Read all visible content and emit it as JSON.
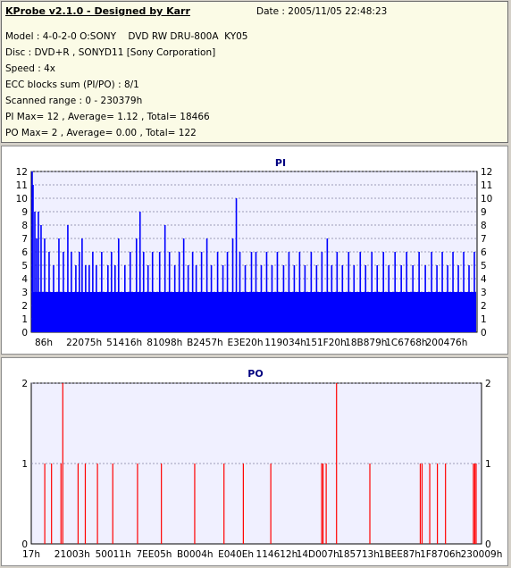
{
  "info": {
    "title": "KProbe v2.1.0 - Designed by Karr",
    "date": "Date : 2005/11/05 22:48:23",
    "lines": [
      "Model : 4-0-2-0 O:SONY    DVD RW DRU-800A  KY05",
      "Disc : DVD+R , SONYD11 [Sony Corporation]",
      "Speed : 4x",
      "ECC blocks sum (PI/PO) : 8/1",
      "Scanned range : 0 - 230379h",
      "PI Max= 12 , Average= 1.12 , Total= 18466",
      "PO Max= 2 , Average= 0.00 , Total= 122"
    ]
  },
  "colors": {
    "pi": "#0000ff",
    "po": "#ff0000",
    "plot_bg": "#f0f0ff",
    "grid": "#8080a0"
  },
  "chart_data": [
    {
      "type": "bar",
      "title": "PI",
      "ylim": [
        0,
        12
      ],
      "yticks": [
        0,
        1,
        2,
        3,
        4,
        5,
        6,
        7,
        8,
        9,
        10,
        11,
        12
      ],
      "xticks": [
        "86h",
        "22075h",
        "51416h",
        "81098h",
        "B2457h",
        "E3E20h",
        "119034h",
        "151F20h",
        "18B879h",
        "1C6768h",
        "200476h"
      ],
      "xrange_label": "0 - 230379h",
      "baseline": 3,
      "spikes": [
        {
          "x": 0.002,
          "y": 12
        },
        {
          "x": 0.004,
          "y": 11
        },
        {
          "x": 0.008,
          "y": 9
        },
        {
          "x": 0.012,
          "y": 7
        },
        {
          "x": 0.016,
          "y": 9
        },
        {
          "x": 0.022,
          "y": 8
        },
        {
          "x": 0.03,
          "y": 7
        },
        {
          "x": 0.04,
          "y": 6
        },
        {
          "x": 0.05,
          "y": 5
        },
        {
          "x": 0.062,
          "y": 7
        },
        {
          "x": 0.072,
          "y": 6
        },
        {
          "x": 0.082,
          "y": 8
        },
        {
          "x": 0.09,
          "y": 6
        },
        {
          "x": 0.1,
          "y": 5
        },
        {
          "x": 0.108,
          "y": 6
        },
        {
          "x": 0.114,
          "y": 7
        },
        {
          "x": 0.122,
          "y": 5
        },
        {
          "x": 0.13,
          "y": 5
        },
        {
          "x": 0.138,
          "y": 6
        },
        {
          "x": 0.146,
          "y": 5
        },
        {
          "x": 0.158,
          "y": 6
        },
        {
          "x": 0.172,
          "y": 5
        },
        {
          "x": 0.18,
          "y": 6
        },
        {
          "x": 0.188,
          "y": 5
        },
        {
          "x": 0.196,
          "y": 7
        },
        {
          "x": 0.21,
          "y": 5
        },
        {
          "x": 0.222,
          "y": 6
        },
        {
          "x": 0.236,
          "y": 7
        },
        {
          "x": 0.244,
          "y": 9
        },
        {
          "x": 0.252,
          "y": 6
        },
        {
          "x": 0.262,
          "y": 5
        },
        {
          "x": 0.272,
          "y": 6
        },
        {
          "x": 0.288,
          "y": 6
        },
        {
          "x": 0.3,
          "y": 8
        },
        {
          "x": 0.31,
          "y": 6
        },
        {
          "x": 0.322,
          "y": 5
        },
        {
          "x": 0.332,
          "y": 6
        },
        {
          "x": 0.342,
          "y": 7
        },
        {
          "x": 0.352,
          "y": 5
        },
        {
          "x": 0.362,
          "y": 6
        },
        {
          "x": 0.37,
          "y": 5
        },
        {
          "x": 0.382,
          "y": 6
        },
        {
          "x": 0.394,
          "y": 7
        },
        {
          "x": 0.404,
          "y": 5
        },
        {
          "x": 0.418,
          "y": 6
        },
        {
          "x": 0.43,
          "y": 5
        },
        {
          "x": 0.44,
          "y": 6
        },
        {
          "x": 0.452,
          "y": 7
        },
        {
          "x": 0.46,
          "y": 10
        },
        {
          "x": 0.468,
          "y": 6
        },
        {
          "x": 0.48,
          "y": 5
        },
        {
          "x": 0.494,
          "y": 6
        },
        {
          "x": 0.504,
          "y": 6
        },
        {
          "x": 0.516,
          "y": 5
        },
        {
          "x": 0.528,
          "y": 6
        },
        {
          "x": 0.54,
          "y": 5
        },
        {
          "x": 0.552,
          "y": 6
        },
        {
          "x": 0.566,
          "y": 5
        },
        {
          "x": 0.578,
          "y": 6
        },
        {
          "x": 0.59,
          "y": 5
        },
        {
          "x": 0.602,
          "y": 6
        },
        {
          "x": 0.614,
          "y": 5
        },
        {
          "x": 0.628,
          "y": 6
        },
        {
          "x": 0.64,
          "y": 5
        },
        {
          "x": 0.652,
          "y": 6
        },
        {
          "x": 0.664,
          "y": 7
        },
        {
          "x": 0.674,
          "y": 5
        },
        {
          "x": 0.686,
          "y": 6
        },
        {
          "x": 0.698,
          "y": 5
        },
        {
          "x": 0.712,
          "y": 6
        },
        {
          "x": 0.724,
          "y": 5
        },
        {
          "x": 0.738,
          "y": 6
        },
        {
          "x": 0.75,
          "y": 5
        },
        {
          "x": 0.764,
          "y": 6
        },
        {
          "x": 0.776,
          "y": 5
        },
        {
          "x": 0.79,
          "y": 6
        },
        {
          "x": 0.802,
          "y": 5
        },
        {
          "x": 0.816,
          "y": 6
        },
        {
          "x": 0.83,
          "y": 5
        },
        {
          "x": 0.842,
          "y": 6
        },
        {
          "x": 0.856,
          "y": 5
        },
        {
          "x": 0.87,
          "y": 6
        },
        {
          "x": 0.884,
          "y": 5
        },
        {
          "x": 0.898,
          "y": 6
        },
        {
          "x": 0.91,
          "y": 5
        },
        {
          "x": 0.922,
          "y": 6
        },
        {
          "x": 0.934,
          "y": 5
        },
        {
          "x": 0.946,
          "y": 6
        },
        {
          "x": 0.958,
          "y": 5
        },
        {
          "x": 0.97,
          "y": 6
        },
        {
          "x": 0.982,
          "y": 5
        },
        {
          "x": 0.994,
          "y": 6
        }
      ]
    },
    {
      "type": "bar",
      "title": "PO",
      "ylim": [
        0,
        2
      ],
      "yticks": [
        0,
        1,
        2
      ],
      "xticks": [
        "17h",
        "21003h",
        "50011h",
        "7EE05h",
        "B0004h",
        "E040Eh",
        "114612h",
        "14D007h",
        "185713h",
        "1BEE87h",
        "1F8706h",
        "230009h"
      ],
      "xrange_label": "0 - 230379h",
      "spikes": [
        {
          "x": 0.03,
          "y": 1
        },
        {
          "x": 0.045,
          "y": 1
        },
        {
          "x": 0.066,
          "y": 1
        },
        {
          "x": 0.07,
          "y": 2
        },
        {
          "x": 0.104,
          "y": 1
        },
        {
          "x": 0.12,
          "y": 1
        },
        {
          "x": 0.147,
          "y": 1
        },
        {
          "x": 0.181,
          "y": 1
        },
        {
          "x": 0.236,
          "y": 1
        },
        {
          "x": 0.289,
          "y": 1
        },
        {
          "x": 0.363,
          "y": 1
        },
        {
          "x": 0.428,
          "y": 1
        },
        {
          "x": 0.471,
          "y": 1
        },
        {
          "x": 0.532,
          "y": 1
        },
        {
          "x": 0.645,
          "y": 1
        },
        {
          "x": 0.648,
          "y": 1
        },
        {
          "x": 0.655,
          "y": 1
        },
        {
          "x": 0.678,
          "y": 2
        },
        {
          "x": 0.752,
          "y": 1
        },
        {
          "x": 0.864,
          "y": 1
        },
        {
          "x": 0.868,
          "y": 1
        },
        {
          "x": 0.885,
          "y": 1
        },
        {
          "x": 0.902,
          "y": 1
        },
        {
          "x": 0.92,
          "y": 1
        },
        {
          "x": 0.982,
          "y": 1
        },
        {
          "x": 0.985,
          "y": 1
        },
        {
          "x": 0.988,
          "y": 1
        }
      ]
    }
  ]
}
